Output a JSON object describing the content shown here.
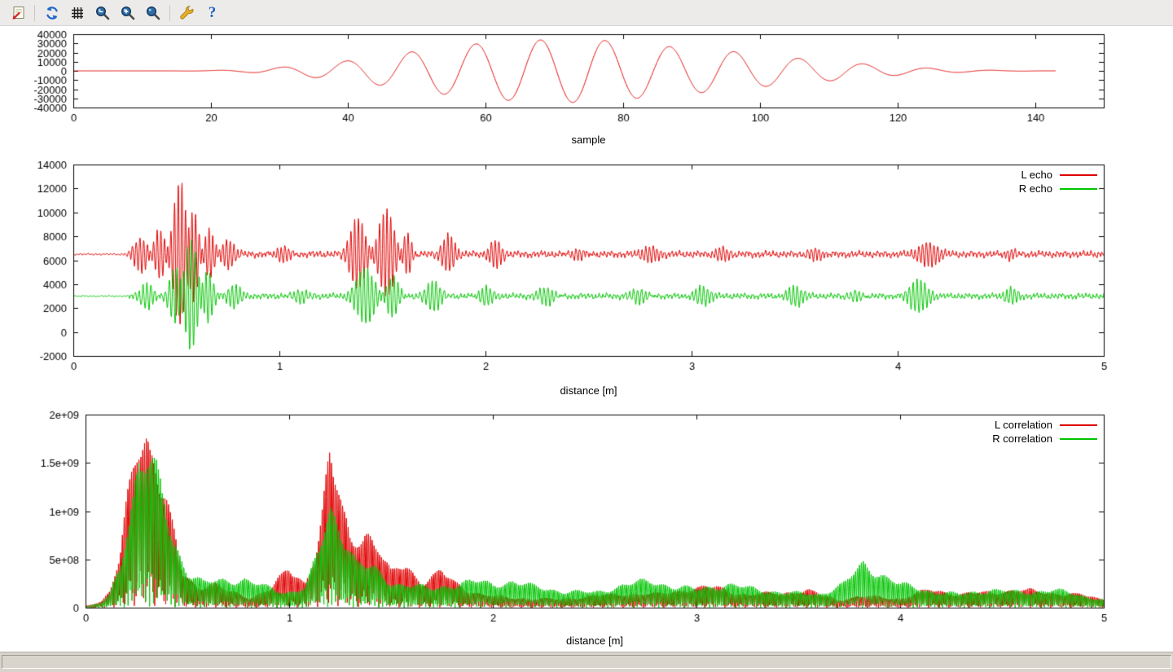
{
  "window": {
    "background": "#ffffff",
    "toolbar_background": "#ecebe9",
    "statusbar_text": ""
  },
  "toolbar": {
    "items": [
      {
        "name": "export",
        "icon": "export-icon"
      },
      {
        "name": "replot",
        "icon": "replot-icon"
      },
      {
        "name": "grid",
        "icon": "grid-icon"
      },
      {
        "name": "zoom-previous",
        "icon": "zoom-previous-icon"
      },
      {
        "name": "zoom-next",
        "icon": "zoom-next-icon"
      },
      {
        "name": "autoscale",
        "icon": "autoscale-icon"
      },
      {
        "name": "configure",
        "icon": "wrench-icon"
      },
      {
        "name": "help",
        "icon": "help-icon",
        "glyph": "?"
      }
    ]
  },
  "colors": {
    "line_red": "#e00000",
    "line_green": "#00c400",
    "axis": "#000000"
  },
  "chart_data": [
    {
      "type": "line",
      "title": "",
      "xlabel": "sample",
      "ylabel": "",
      "xlim": [
        0,
        150
      ],
      "xticks": [
        0,
        20,
        40,
        60,
        80,
        100,
        120,
        140
      ],
      "ylim": [
        -40000,
        40000
      ],
      "yticks": [
        -40000,
        -30000,
        -20000,
        -10000,
        0,
        10000,
        20000,
        30000,
        40000
      ],
      "grid": false,
      "legend": null,
      "series": [
        {
          "name": "",
          "color": "#e00000",
          "kind": "chirp",
          "x_range": [
            0,
            143
          ],
          "period": 9.4,
          "peak_x": 68,
          "amplitude_envelope": [
            [
              0,
              0
            ],
            [
              14,
              0
            ],
            [
              20,
              400
            ],
            [
              25,
              1400
            ],
            [
              30,
              3800
            ],
            [
              35,
              7200
            ],
            [
              40,
              11000
            ],
            [
              45,
              16000
            ],
            [
              50,
              21500
            ],
            [
              55,
              26500
            ],
            [
              60,
              30500
            ],
            [
              65,
              33000
            ],
            [
              70,
              34200
            ],
            [
              75,
              34600
            ],
            [
              80,
              31500
            ],
            [
              85,
              27500
            ],
            [
              90,
              24500
            ],
            [
              95,
              22000
            ],
            [
              100,
              17500
            ],
            [
              105,
              14000
            ],
            [
              110,
              11000
            ],
            [
              115,
              7600
            ],
            [
              120,
              4800
            ],
            [
              125,
              2800
            ],
            [
              130,
              1300
            ],
            [
              135,
              500
            ],
            [
              140,
              150
            ],
            [
              143,
              0
            ]
          ]
        }
      ]
    },
    {
      "type": "line",
      "title": "",
      "xlabel": "distance [m]",
      "ylabel": "",
      "xlim": [
        0,
        5
      ],
      "xticks": [
        0,
        1,
        2,
        3,
        4,
        5
      ],
      "ylim": [
        -2000,
        14000
      ],
      "yticks": [
        -2000,
        0,
        2000,
        4000,
        6000,
        8000,
        10000,
        12000,
        14000
      ],
      "grid": false,
      "legend": {
        "position": "top-right"
      },
      "series": [
        {
          "name": "L echo",
          "color": "#e00000",
          "kind": "noisy",
          "seed": 3,
          "baseline": 6500,
          "noise_amplitude": 380,
          "quiet_until": 0.27,
          "osc_freq": 55,
          "bursts": [
            {
              "center": 0.33,
              "width": 0.045,
              "amplitude": 1400
            },
            {
              "center": 0.42,
              "width": 0.04,
              "amplitude": 2300
            },
            {
              "center": 0.52,
              "width": 0.045,
              "amplitude": 6200
            },
            {
              "center": 0.58,
              "width": 0.035,
              "amplitude": 4500
            },
            {
              "center": 0.66,
              "width": 0.035,
              "amplitude": 2200
            },
            {
              "center": 0.75,
              "width": 0.04,
              "amplitude": 1100
            },
            {
              "center": 1.02,
              "width": 0.05,
              "amplitude": 800
            },
            {
              "center": 1.38,
              "width": 0.05,
              "amplitude": 3000
            },
            {
              "center": 1.52,
              "width": 0.05,
              "amplitude": 3600
            },
            {
              "center": 1.62,
              "width": 0.03,
              "amplitude": 2000
            },
            {
              "center": 1.82,
              "width": 0.04,
              "amplitude": 1500
            },
            {
              "center": 2.05,
              "width": 0.04,
              "amplitude": 1200
            },
            {
              "center": 2.45,
              "width": 0.05,
              "amplitude": 600
            },
            {
              "center": 2.8,
              "width": 0.05,
              "amplitude": 550
            },
            {
              "center": 3.15,
              "width": 0.05,
              "amplitude": 650
            },
            {
              "center": 3.6,
              "width": 0.05,
              "amplitude": 600
            },
            {
              "center": 4.15,
              "width": 0.06,
              "amplitude": 900
            },
            {
              "center": 4.55,
              "width": 0.04,
              "amplitude": 550
            }
          ]
        },
        {
          "name": "R echo",
          "color": "#00c400",
          "kind": "noisy",
          "seed": 4,
          "baseline": 3000,
          "noise_amplitude": 330,
          "quiet_until": 0.27,
          "osc_freq": 52,
          "bursts": [
            {
              "center": 0.36,
              "width": 0.04,
              "amplitude": 1100
            },
            {
              "center": 0.5,
              "width": 0.04,
              "amplitude": 2600
            },
            {
              "center": 0.57,
              "width": 0.045,
              "amplitude": 4700
            },
            {
              "center": 0.65,
              "width": 0.035,
              "amplitude": 2200
            },
            {
              "center": 0.78,
              "width": 0.04,
              "amplitude": 900
            },
            {
              "center": 1.1,
              "width": 0.05,
              "amplitude": 700
            },
            {
              "center": 1.42,
              "width": 0.06,
              "amplitude": 2300
            },
            {
              "center": 1.55,
              "width": 0.04,
              "amplitude": 1700
            },
            {
              "center": 1.75,
              "width": 0.05,
              "amplitude": 1400
            },
            {
              "center": 2.0,
              "width": 0.04,
              "amplitude": 800
            },
            {
              "center": 2.3,
              "width": 0.05,
              "amplitude": 850
            },
            {
              "center": 2.75,
              "width": 0.05,
              "amplitude": 700
            },
            {
              "center": 3.05,
              "width": 0.05,
              "amplitude": 750
            },
            {
              "center": 3.5,
              "width": 0.05,
              "amplitude": 800
            },
            {
              "center": 3.8,
              "width": 0.04,
              "amplitude": 600
            },
            {
              "center": 4.1,
              "width": 0.06,
              "amplitude": 1300
            },
            {
              "center": 4.55,
              "width": 0.04,
              "amplitude": 600
            }
          ]
        }
      ]
    },
    {
      "type": "line",
      "title": "",
      "xlabel": "distance [m]",
      "ylabel": "",
      "xlim": [
        0,
        5
      ],
      "xticks": [
        0,
        1,
        2,
        3,
        4,
        5
      ],
      "ylim": [
        0,
        2000000000.0
      ],
      "yticks": [
        0,
        500000000.0,
        1000000000.0,
        1500000000.0,
        2000000000.0
      ],
      "ytick_labels": [
        "0",
        "5e+08",
        "1e+09",
        "1.5e+09",
        "2e+09"
      ],
      "grid": false,
      "legend": {
        "position": "top-right"
      },
      "series": [
        {
          "name": "L correlation",
          "color": "#e00000",
          "kind": "rectified",
          "osc_freq": 55,
          "seed": 1,
          "envelope": [
            [
              0,
              20000000.0
            ],
            [
              0.08,
              80000000.0
            ],
            [
              0.12,
              200000000.0
            ],
            [
              0.17,
              600000000.0
            ],
            [
              0.22,
              1500000000.0
            ],
            [
              0.26,
              2100000000.0
            ],
            [
              0.3,
              2100000000.0
            ],
            [
              0.34,
              1850000000.0
            ],
            [
              0.38,
              1400000000.0
            ],
            [
              0.43,
              900000000.0
            ],
            [
              0.48,
              400000000.0
            ],
            [
              0.55,
              250000000.0
            ],
            [
              0.62,
              300000000.0
            ],
            [
              0.7,
              200000000.0
            ],
            [
              0.8,
              120000000.0
            ],
            [
              0.9,
              220000000.0
            ],
            [
              1.0,
              450000000.0
            ],
            [
              1.08,
              300000000.0
            ],
            [
              1.14,
              800000000.0
            ],
            [
              1.2,
              1750000000.0
            ],
            [
              1.25,
              1300000000.0
            ],
            [
              1.3,
              800000000.0
            ],
            [
              1.37,
              950000000.0
            ],
            [
              1.45,
              650000000.0
            ],
            [
              1.5,
              400000000.0
            ],
            [
              1.57,
              550000000.0
            ],
            [
              1.65,
              300000000.0
            ],
            [
              1.75,
              420000000.0
            ],
            [
              1.85,
              250000000.0
            ],
            [
              1.95,
              150000000.0
            ],
            [
              2.1,
              120000000.0
            ],
            [
              2.3,
              100000000.0
            ],
            [
              2.5,
              140000000.0
            ],
            [
              2.65,
              170000000.0
            ],
            [
              2.8,
              160000000.0
            ],
            [
              2.95,
              220000000.0
            ],
            [
              3.1,
              250000000.0
            ],
            [
              3.25,
              150000000.0
            ],
            [
              3.4,
              180000000.0
            ],
            [
              3.55,
              200000000.0
            ],
            [
              3.7,
              100000000.0
            ],
            [
              3.85,
              140000000.0
            ],
            [
              4.0,
              110000000.0
            ],
            [
              4.15,
              220000000.0
            ],
            [
              4.3,
              160000000.0
            ],
            [
              4.45,
              190000000.0
            ],
            [
              4.6,
              210000000.0
            ],
            [
              4.75,
              180000000.0
            ],
            [
              4.9,
              150000000.0
            ],
            [
              5.0,
              100000000.0
            ]
          ]
        },
        {
          "name": "R correlation",
          "color": "#00c400",
          "kind": "rectified",
          "osc_freq": 52,
          "seed": 2,
          "envelope": [
            [
              0,
              10000000.0
            ],
            [
              0.08,
              60000000.0
            ],
            [
              0.12,
              150000000.0
            ],
            [
              0.17,
              500000000.0
            ],
            [
              0.22,
              1200000000.0
            ],
            [
              0.26,
              1800000000.0
            ],
            [
              0.3,
              1820000000.0
            ],
            [
              0.34,
              1600000000.0
            ],
            [
              0.38,
              1300000000.0
            ],
            [
              0.43,
              800000000.0
            ],
            [
              0.5,
              450000000.0
            ],
            [
              0.58,
              300000000.0
            ],
            [
              0.68,
              320000000.0
            ],
            [
              0.78,
              350000000.0
            ],
            [
              0.88,
              250000000.0
            ],
            [
              0.98,
              180000000.0
            ],
            [
              1.08,
              250000000.0
            ],
            [
              1.15,
              700000000.0
            ],
            [
              1.2,
              1150000000.0
            ],
            [
              1.27,
              900000000.0
            ],
            [
              1.33,
              550000000.0
            ],
            [
              1.42,
              450000000.0
            ],
            [
              1.5,
              300000000.0
            ],
            [
              1.6,
              280000000.0
            ],
            [
              1.7,
              220000000.0
            ],
            [
              1.8,
              280000000.0
            ],
            [
              1.9,
              320000000.0
            ],
            [
              2.0,
              280000000.0
            ],
            [
              2.1,
              320000000.0
            ],
            [
              2.2,
              250000000.0
            ],
            [
              2.35,
              200000000.0
            ],
            [
              2.5,
              180000000.0
            ],
            [
              2.65,
              280000000.0
            ],
            [
              2.78,
              320000000.0
            ],
            [
              2.9,
              250000000.0
            ],
            [
              3.0,
              220000000.0
            ],
            [
              3.15,
              280000000.0
            ],
            [
              3.3,
              220000000.0
            ],
            [
              3.45,
              180000000.0
            ],
            [
              3.6,
              160000000.0
            ],
            [
              3.72,
              280000000.0
            ],
            [
              3.82,
              520000000.0
            ],
            [
              3.9,
              420000000.0
            ],
            [
              4.0,
              280000000.0
            ],
            [
              4.15,
              200000000.0
            ],
            [
              4.3,
              160000000.0
            ],
            [
              4.45,
              220000000.0
            ],
            [
              4.6,
              180000000.0
            ],
            [
              4.75,
              220000000.0
            ],
            [
              4.9,
              140000000.0
            ],
            [
              5.0,
              100000000.0
            ]
          ]
        }
      ]
    }
  ]
}
